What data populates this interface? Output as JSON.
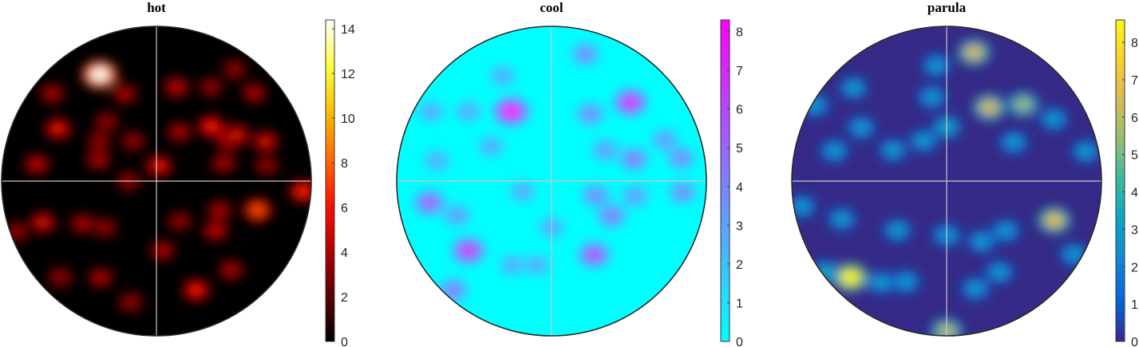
{
  "chart_data": [
    {
      "type": "heatmap",
      "title": "hot",
      "colormap": "hot",
      "clim": [
        0,
        14.4
      ],
      "colorbar_ticks": [
        0,
        2,
        4,
        6,
        8,
        10,
        12,
        14
      ],
      "colorbar_tick_labels": [
        "0",
        "2",
        "4",
        "6",
        "8",
        "10",
        "12",
        "14"
      ],
      "background": "#000000",
      "points": [
        {
          "az": 118,
          "r": 0.78,
          "v": 14.2
        },
        {
          "az": 152,
          "r": 0.72,
          "v": 5.5
        },
        {
          "az": 140,
          "r": 0.88,
          "v": 4.0
        },
        {
          "az": 60,
          "r": 0.7,
          "v": 3.5
        },
        {
          "az": 78,
          "r": 0.62,
          "v": 4.5
        },
        {
          "az": 110,
          "r": 0.6,
          "v": 4.0
        },
        {
          "az": 172,
          "r": 0.78,
          "v": 4.5
        },
        {
          "az": 130,
          "r": 0.5,
          "v": 3.5
        },
        {
          "az": 145,
          "r": 0.45,
          "v": 3.5
        },
        {
          "az": 160,
          "r": 0.4,
          "v": 4.0
        },
        {
          "az": 120,
          "r": 0.3,
          "v": 3.5
        },
        {
          "az": 45,
          "r": 0.5,
          "v": 6.0
        },
        {
          "az": 30,
          "r": 0.55,
          "v": 6.5
        },
        {
          "az": 42,
          "r": 0.85,
          "v": 4.0
        },
        {
          "az": 65,
          "r": 0.35,
          "v": 4.0
        },
        {
          "az": 15,
          "r": 0.45,
          "v": 4.0
        },
        {
          "az": 20,
          "r": 0.75,
          "v": 5.0
        },
        {
          "az": 80,
          "r": 0.1,
          "v": 5.5
        },
        {
          "az": 30,
          "r": 0.6,
          "v": 5.0
        },
        {
          "az": 8,
          "r": 0.72,
          "v": 3.5
        },
        {
          "az": 55,
          "r": 0.88,
          "v": 3.5
        },
        {
          "az": 200,
          "r": 0.78,
          "v": 5.0
        },
        {
          "az": 210,
          "r": 0.55,
          "v": 4.0
        },
        {
          "az": 222,
          "r": 0.45,
          "v": 3.5
        },
        {
          "az": 240,
          "r": 0.72,
          "v": 4.0
        },
        {
          "az": 225,
          "r": 0.88,
          "v": 3.5
        },
        {
          "az": 200,
          "r": 0.96,
          "v": 3.5
        },
        {
          "az": 258,
          "r": 0.8,
          "v": 3.5
        },
        {
          "az": 290,
          "r": 0.75,
          "v": 6.0
        },
        {
          "az": 275,
          "r": 0.45,
          "v": 4.0
        },
        {
          "az": 320,
          "r": 0.5,
          "v": 4.5
        },
        {
          "az": 344,
          "r": 0.68,
          "v": 7.5
        },
        {
          "az": 356,
          "r": 0.95,
          "v": 6.5
        },
        {
          "az": 335,
          "r": 0.45,
          "v": 4.0
        },
        {
          "az": 310,
          "r": 0.75,
          "v": 4.0
        },
        {
          "az": 300,
          "r": 0.3,
          "v": 3.5
        },
        {
          "az": 180,
          "r": 0.18,
          "v": 3.5
        }
      ]
    },
    {
      "type": "heatmap",
      "title": "cool",
      "colormap": "cool",
      "clim": [
        0,
        8.3
      ],
      "colorbar_ticks": [
        0,
        1,
        2,
        3,
        4,
        5,
        6,
        7,
        8
      ],
      "colorbar_tick_labels": [
        "0",
        "1",
        "2",
        "3",
        "4",
        "5",
        "6",
        "7",
        "8"
      ],
      "background": "#00ffff",
      "points": [
        {
          "az": 120,
          "r": 0.52,
          "v": 8.0
        },
        {
          "az": 45,
          "r": 0.72,
          "v": 7.0
        },
        {
          "az": 75,
          "r": 0.85,
          "v": 4.0
        },
        {
          "az": 60,
          "r": 0.5,
          "v": 4.0
        },
        {
          "az": 140,
          "r": 0.7,
          "v": 3.0
        },
        {
          "az": 150,
          "r": 0.9,
          "v": 3.0
        },
        {
          "az": 115,
          "r": 0.75,
          "v": 3.0
        },
        {
          "az": 30,
          "r": 0.4,
          "v": 3.5
        },
        {
          "az": 15,
          "r": 0.55,
          "v": 4.5
        },
        {
          "az": 10,
          "r": 0.85,
          "v": 4.0
        },
        {
          "az": 20,
          "r": 0.78,
          "v": 3.5
        },
        {
          "az": 150,
          "r": 0.45,
          "v": 3.0
        },
        {
          "az": 170,
          "r": 0.75,
          "v": 3.0
        },
        {
          "az": 190,
          "r": 0.8,
          "v": 5.5
        },
        {
          "az": 200,
          "r": 0.65,
          "v": 3.5
        },
        {
          "az": 220,
          "r": 0.7,
          "v": 6.8
        },
        {
          "az": 228,
          "r": 0.95,
          "v": 4.5
        },
        {
          "az": 245,
          "r": 0.6,
          "v": 3.0
        },
        {
          "az": 300,
          "r": 0.55,
          "v": 6.0
        },
        {
          "az": 330,
          "r": 0.45,
          "v": 4.5
        },
        {
          "az": 342,
          "r": 0.3,
          "v": 4.0
        },
        {
          "az": 350,
          "r": 0.55,
          "v": 3.5
        },
        {
          "az": 355,
          "r": 0.85,
          "v": 4.0
        },
        {
          "az": 270,
          "r": 0.3,
          "v": 3.0
        },
        {
          "az": 260,
          "r": 0.55,
          "v": 3.0
        },
        {
          "az": 200,
          "r": 0.2,
          "v": 3.0
        }
      ]
    },
    {
      "type": "heatmap",
      "title": "parula",
      "colormap": "parula",
      "clim": [
        0,
        8.6
      ],
      "colorbar_ticks": [
        0,
        1,
        2,
        3,
        4,
        5,
        6,
        7,
        8
      ],
      "colorbar_tick_labels": [
        "0",
        "1",
        "2",
        "3",
        "4",
        "5",
        "6",
        "7",
        "8"
      ],
      "background": "#352a87",
      "points": [
        {
          "az": 225,
          "r": 0.88,
          "v": 8.5
        },
        {
          "az": 217,
          "r": 0.98,
          "v": 3.5
        },
        {
          "az": 237,
          "r": 0.78,
          "v": 3.0
        },
        {
          "az": 248,
          "r": 0.7,
          "v": 3.0
        },
        {
          "az": 270,
          "r": 0.97,
          "v": 6.0
        },
        {
          "az": 78,
          "r": 0.85,
          "v": 6.5
        },
        {
          "az": 60,
          "r": 0.55,
          "v": 6.5
        },
        {
          "az": 45,
          "r": 0.7,
          "v": 5.5
        },
        {
          "az": 30,
          "r": 0.8,
          "v": 3.0
        },
        {
          "az": 12,
          "r": 0.92,
          "v": 3.0
        },
        {
          "az": 100,
          "r": 0.55,
          "v": 3.0
        },
        {
          "az": 90,
          "r": 0.35,
          "v": 3.5
        },
        {
          "az": 95,
          "r": 0.75,
          "v": 3.0
        },
        {
          "az": 135,
          "r": 0.85,
          "v": 3.0
        },
        {
          "az": 148,
          "r": 0.65,
          "v": 3.0
        },
        {
          "az": 165,
          "r": 0.75,
          "v": 3.0
        },
        {
          "az": 120,
          "r": 0.3,
          "v": 3.0
        },
        {
          "az": 150,
          "r": 0.4,
          "v": 3.0
        },
        {
          "az": 30,
          "r": 0.5,
          "v": 3.0
        },
        {
          "az": 340,
          "r": 0.74,
          "v": 6.8
        },
        {
          "az": 200,
          "r": 0.72,
          "v": 3.0
        },
        {
          "az": 190,
          "r": 0.95,
          "v": 3.0
        },
        {
          "az": 225,
          "r": 0.45,
          "v": 3.0
        },
        {
          "az": 270,
          "r": 0.35,
          "v": 3.0
        },
        {
          "az": 300,
          "r": 0.45,
          "v": 3.0
        },
        {
          "az": 320,
          "r": 0.5,
          "v": 3.0
        },
        {
          "az": 300,
          "r": 0.68,
          "v": 3.0
        },
        {
          "az": 285,
          "r": 0.72,
          "v": 3.0
        },
        {
          "az": 330,
          "r": 0.95,
          "v": 3.0
        },
        {
          "az": 150,
          "r": 0.98,
          "v": 3.0
        }
      ]
    }
  ]
}
